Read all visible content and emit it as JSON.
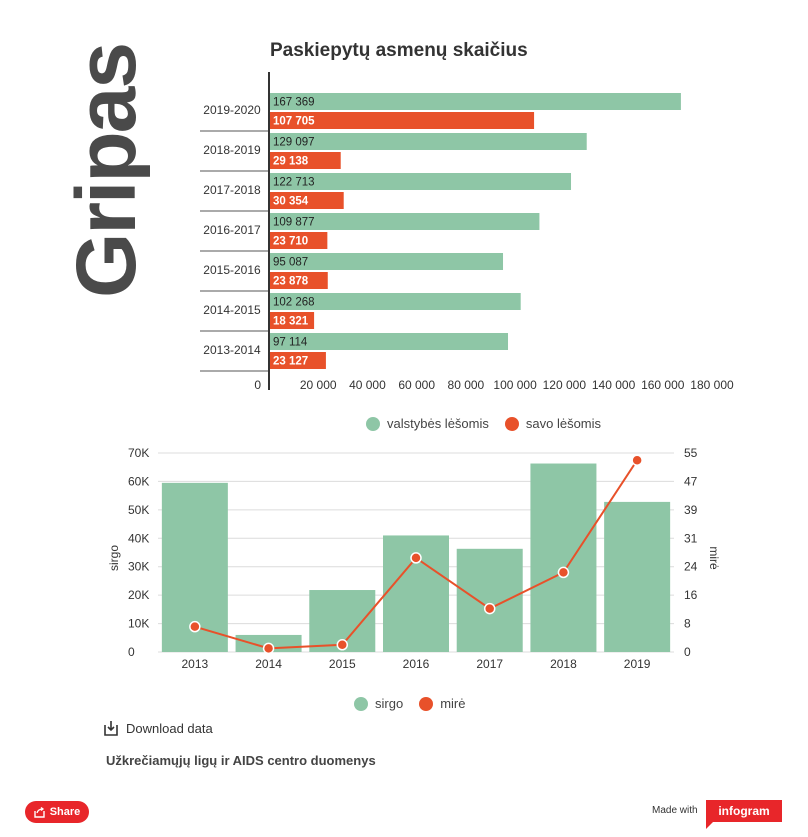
{
  "page": {
    "big_title": "Gripas",
    "source": "Užkrečiamųjų ligų ir AIDS centro duomenys",
    "download_label": "Download data",
    "share_label": "Share",
    "made_with": "Made with",
    "brand": "infogram",
    "colors": {
      "green": "#8ec6a6",
      "orange": "#e8512a",
      "brand_red": "#e8262a"
    }
  },
  "chart_data": [
    {
      "type": "bar",
      "orientation": "horizontal",
      "title": "Paskiepytų asmenų skaičius",
      "categories": [
        "2019-2020",
        "2018-2019",
        "2017-2018",
        "2016-2017",
        "2015-2016",
        "2014-2015",
        "2013-2014"
      ],
      "series": [
        {
          "name": "valstybės lėšomis",
          "color": "#8ec6a6",
          "values": [
            167369,
            129097,
            122713,
            109877,
            95087,
            102268,
            97114
          ],
          "labels": [
            "167 369",
            "129 097",
            "122 713",
            "109 877",
            "95 087",
            "102 268",
            "97 114"
          ]
        },
        {
          "name": "savo lėšomis",
          "color": "#e8512a",
          "values": [
            107705,
            29138,
            30354,
            23710,
            23878,
            18321,
            23127
          ],
          "labels": [
            "107 705",
            "29 138",
            "30 354",
            "23 710",
            "23 878",
            "18 321",
            "23 127"
          ]
        }
      ],
      "xlim": [
        0,
        180000
      ],
      "xticks": [
        0,
        20000,
        40000,
        60000,
        80000,
        100000,
        120000,
        140000,
        160000,
        180000
      ],
      "xtick_labels": [
        "0",
        "20 000",
        "40 000",
        "60 000",
        "80 000",
        "100 000",
        "120 000",
        "140 000",
        "160 000",
        "180 000"
      ],
      "legend_position": "bottom"
    },
    {
      "type": "bar+line",
      "categories": [
        "2013",
        "2014",
        "2015",
        "2016",
        "2017",
        "2018",
        "2019"
      ],
      "series": [
        {
          "name": "sirgo",
          "type": "bar",
          "axis": "left",
          "color": "#8ec6a6",
          "values": [
            59500,
            6000,
            21800,
            41000,
            36300,
            66300,
            52800
          ]
        },
        {
          "name": "mirė",
          "type": "line",
          "axis": "right",
          "color": "#e8512a",
          "values": [
            7,
            1,
            2,
            26,
            12,
            22,
            53
          ]
        }
      ],
      "ylabel_left": "sirgo",
      "ylabel_right": "mirė",
      "ylim_left": [
        0,
        70000
      ],
      "yticks_left": [
        "0",
        "10K",
        "20K",
        "30K",
        "40K",
        "50K",
        "60K",
        "70K"
      ],
      "ylim_right": [
        0,
        55
      ],
      "yticks_right": [
        "0",
        "8",
        "16",
        "24",
        "31",
        "39",
        "47",
        "55"
      ],
      "legend_position": "bottom"
    }
  ]
}
